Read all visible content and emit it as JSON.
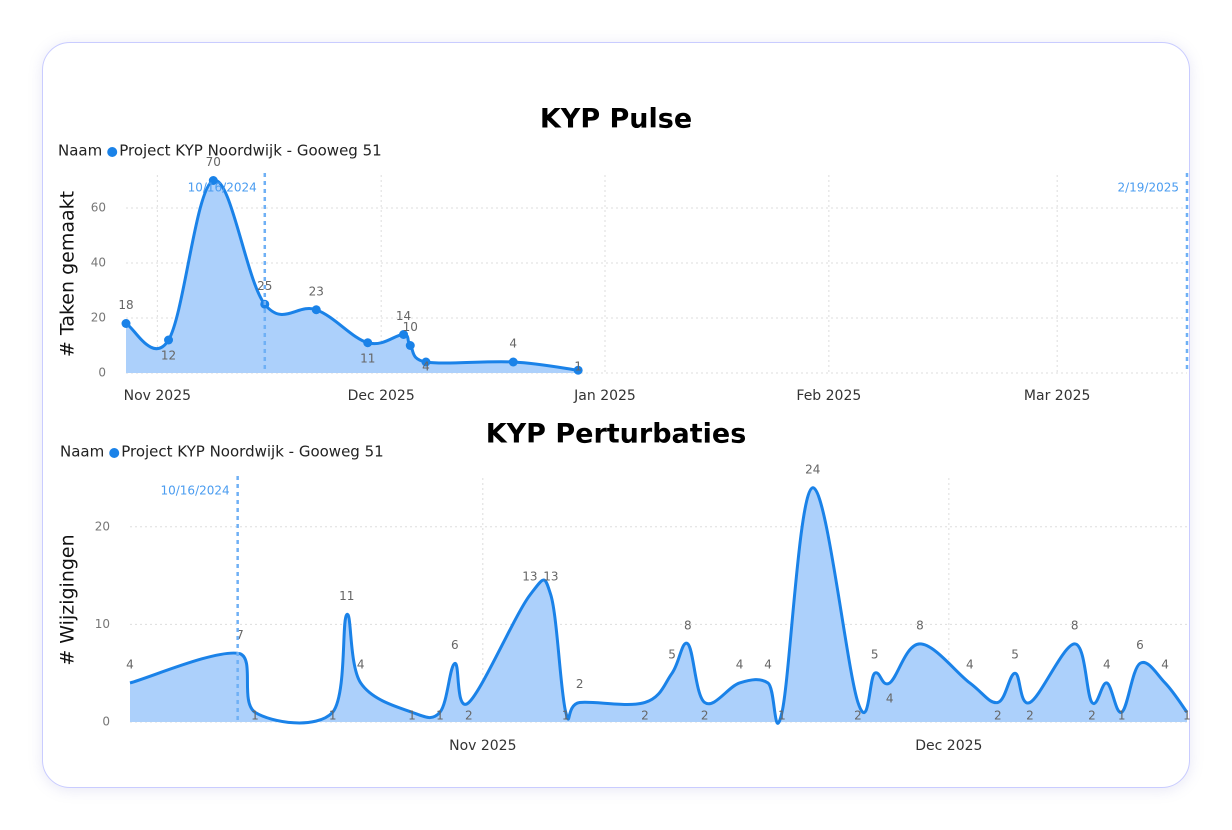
{
  "chart_data": [
    {
      "type": "area",
      "title": "KYP Pulse",
      "y_label": "# Taken gemaakt",
      "legend_title": "Naam",
      "xlim": [
        -0.14,
        4.6
      ],
      "xticks": [
        {
          "value": 0,
          "label": "Nov 2025"
        },
        {
          "value": 1,
          "label": "Dec 2025"
        },
        {
          "value": 2,
          "label": "Jan 2025"
        },
        {
          "value": 3,
          "label": "Feb 2025"
        },
        {
          "value": 4.02,
          "label": "Mar 2025"
        }
      ],
      "ylim": [
        0,
        72
      ],
      "yticks": [
        0,
        20,
        40,
        60
      ],
      "grid": true,
      "markers": true,
      "annotations": [
        {
          "label": "10/16/2024",
          "x": 0.48
        },
        {
          "label": "2/19/2025",
          "x": 4.6
        }
      ],
      "series": [
        {
          "name": "Project KYP Noordwijk - Gooweg 51",
          "color": "#1a82e8",
          "fill_color": "#acd0fb",
          "x": [
            -0.14,
            0.05,
            0.25,
            0.48,
            0.71,
            0.94,
            1.1,
            1.13,
            1.2,
            1.59,
            1.88
          ],
          "values": [
            18,
            12,
            70,
            25,
            23,
            11,
            14,
            10,
            4,
            4,
            1
          ]
        }
      ]
    },
    {
      "type": "area",
      "title": "KYP Perturbaties",
      "y_label": "# Wijzigingen",
      "legend_title": "Naam",
      "xlim": [
        -0.757,
        1.511
      ],
      "xticks": [
        {
          "value": 0,
          "label": "Nov 2025"
        },
        {
          "value": 1,
          "label": "Dec 2025"
        }
      ],
      "ylim": [
        0,
        25
      ],
      "yticks": [
        0,
        10,
        20
      ],
      "grid": true,
      "markers": false,
      "annotations": [
        {
          "label": "10/16/2024",
          "x": -0.526
        }
      ],
      "series": [
        {
          "name": "Project KYP Noordwijk - Gooweg 51",
          "color": "#1a82e8",
          "fill_color": "#acd0fb",
          "x": [
            -0.757,
            -0.521,
            -0.489,
            -0.322,
            -0.292,
            -0.262,
            -0.152,
            -0.092,
            -0.06,
            -0.03,
            0.101,
            0.146,
            0.178,
            0.208,
            0.348,
            0.406,
            0.44,
            0.476,
            0.551,
            0.612,
            0.642,
            0.708,
            0.805,
            0.841,
            0.873,
            0.938,
            1.045,
            1.105,
            1.142,
            1.174,
            1.27,
            1.307,
            1.339,
            1.371,
            1.41,
            1.464,
            1.511
          ],
          "values": [
            4,
            7,
            1,
            1,
            11,
            4,
            1,
            1,
            6,
            2,
            13,
            13,
            1,
            2,
            2,
            5,
            8,
            2,
            4,
            4,
            1,
            24,
            2,
            5,
            4,
            8,
            4,
            2,
            5,
            2,
            8,
            2,
            4,
            1,
            6,
            4,
            1
          ]
        }
      ]
    }
  ]
}
